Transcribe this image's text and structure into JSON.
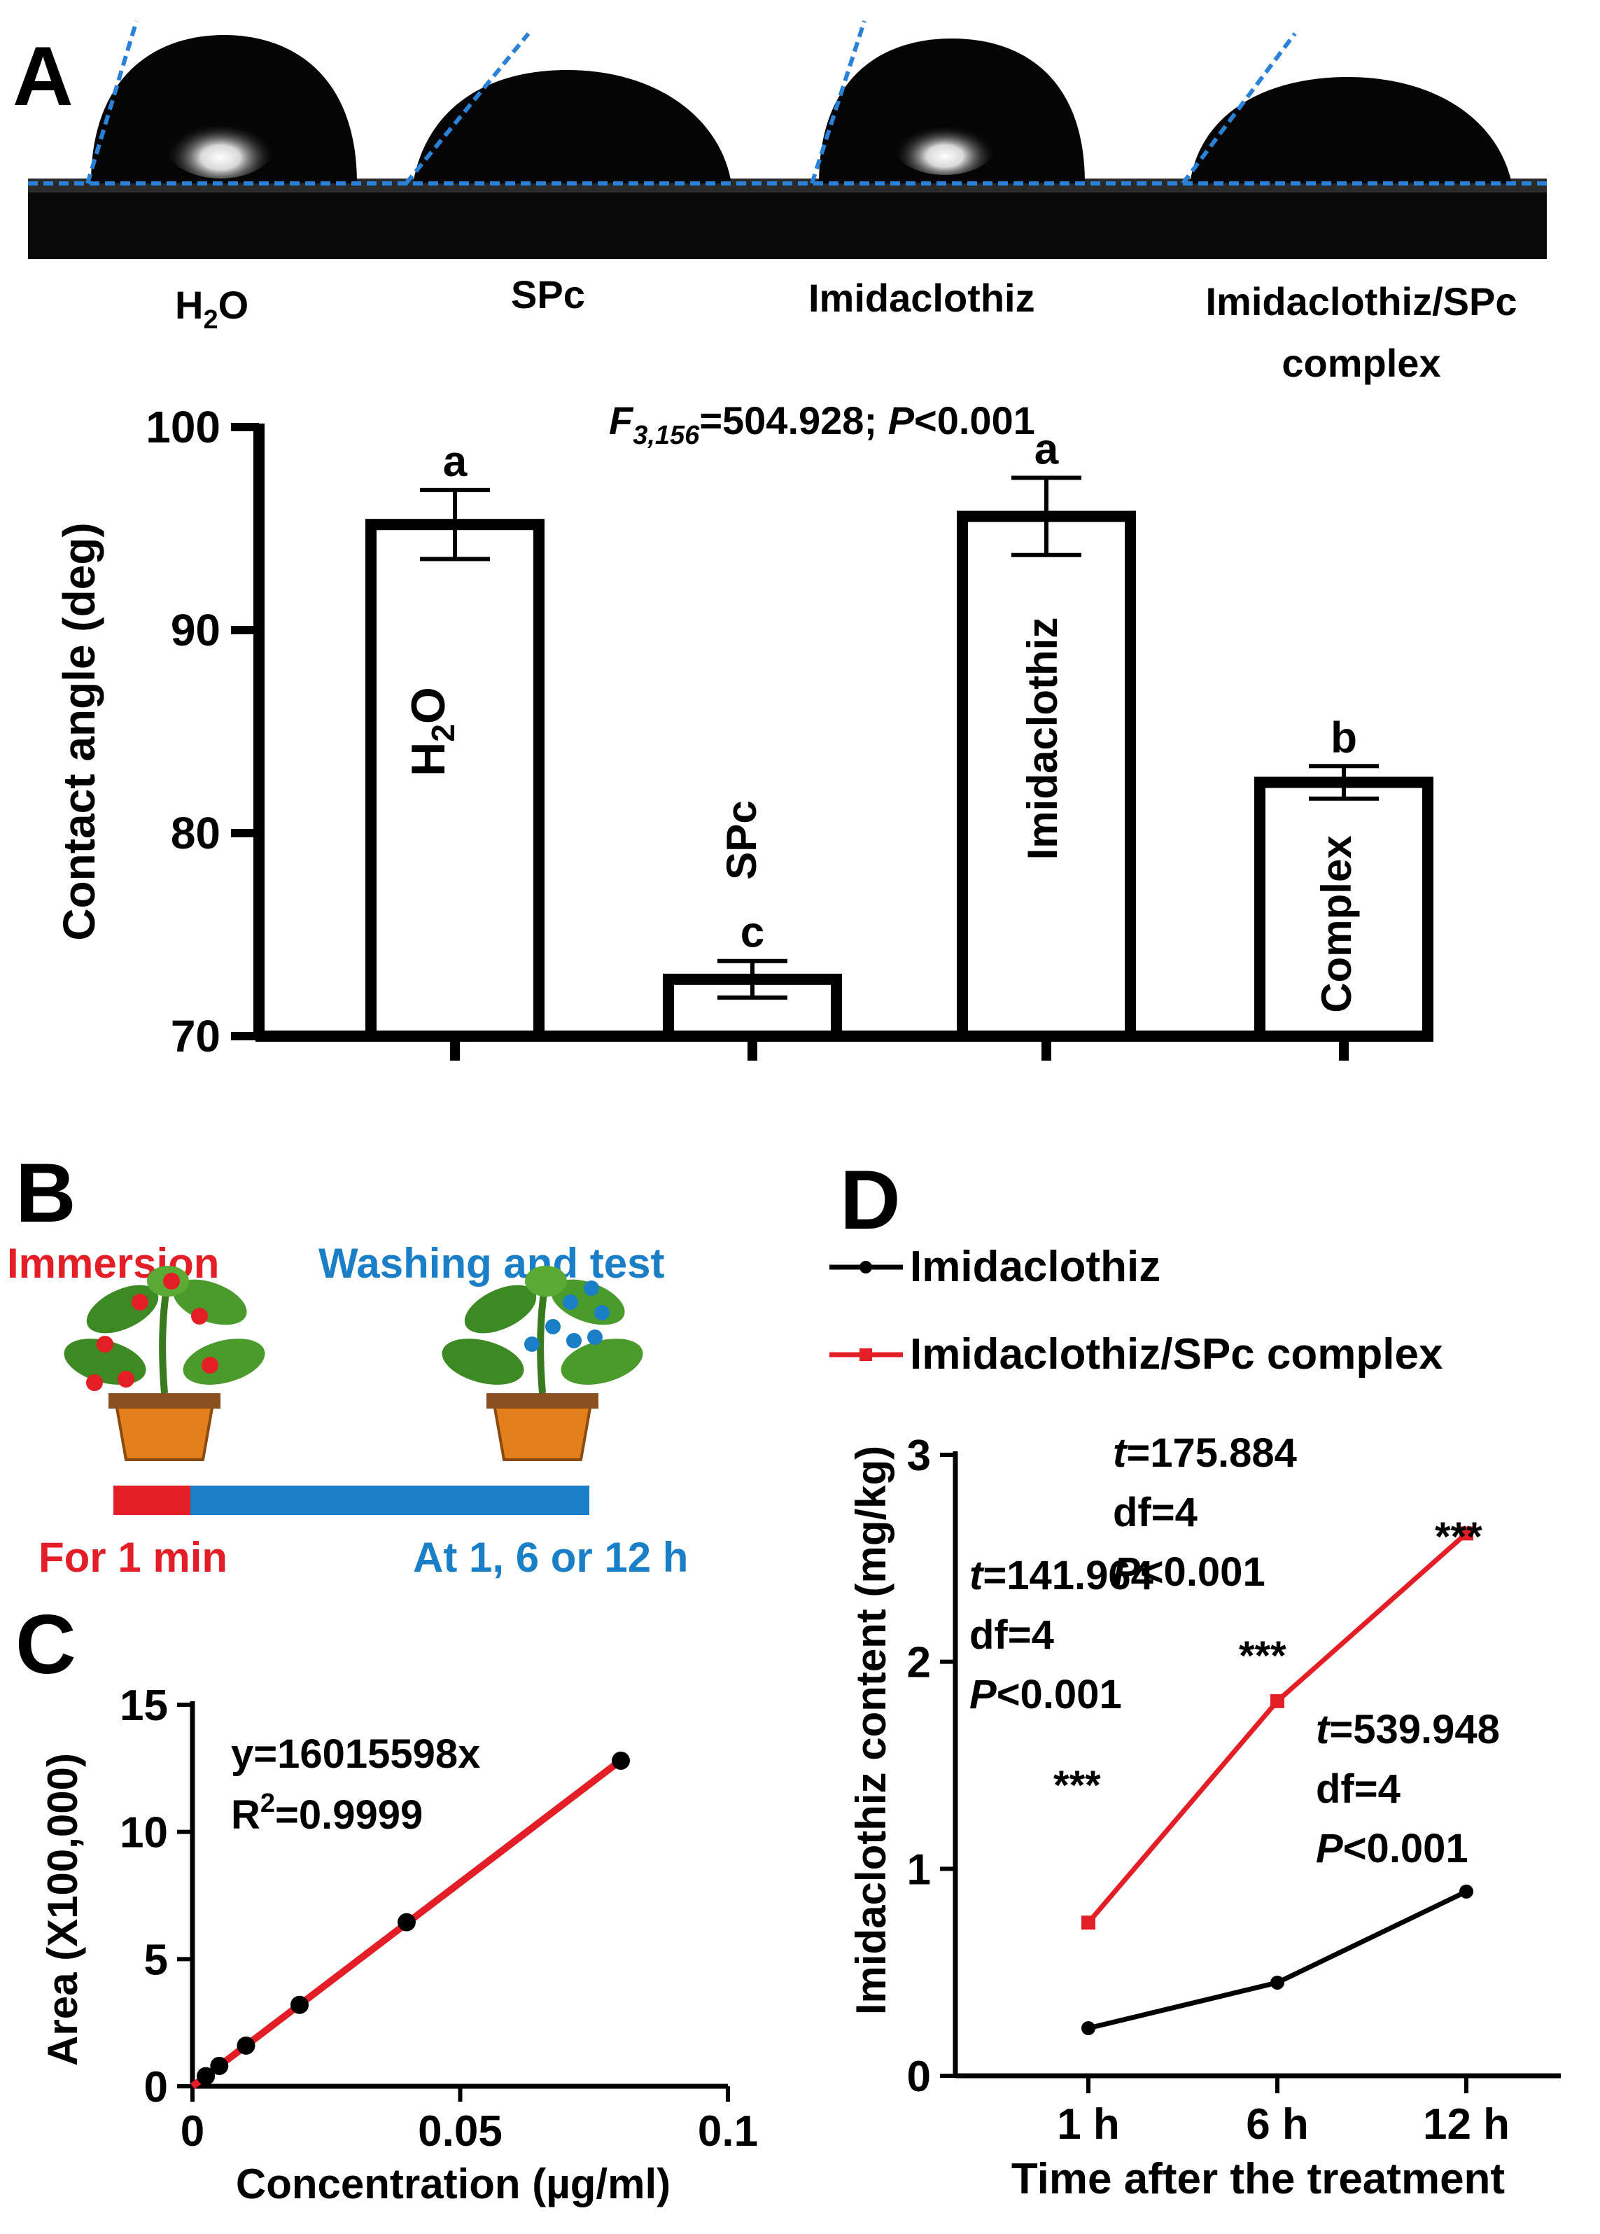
{
  "panels": {
    "A": {
      "letter": "A",
      "droplet_labels": {
        "h2o_base": "H",
        "h2o_sub": "2",
        "h2o_tail": "O",
        "spc": "SPc",
        "imidaclothiz": "Imidaclothiz",
        "complex_line1": "Imidaclothiz/SPc",
        "complex_line2": "complex"
      },
      "stat": {
        "f": "F",
        "f_sub": "3,156",
        "f_val": "=504.928; ",
        "p": "P",
        "p_val": "<0.001"
      },
      "bar_labels": {
        "h2o_base": "H",
        "h2o_sub": "2",
        "h2o_tail": "O",
        "spc": "SPc",
        "imidaclothiz": "Imidaclothiz",
        "complex": "Complex"
      }
    },
    "B": {
      "letter": "B",
      "immersion": "Immersion",
      "washing": "Washing and test",
      "duration": "For 1 min",
      "timepoints": "At 1, 6 or 12 h"
    },
    "C": {
      "letter": "C",
      "equation": "y=16015598x",
      "r2_base": "R",
      "r2_sup": "2",
      "r2_val": "=0.9999"
    },
    "D": {
      "letter": "D",
      "annotations": [
        {
          "t": "t",
          "t_val": "=141.964",
          "df": "df=4",
          "p": "P",
          "p_val": "<0.001",
          "stars": "***"
        },
        {
          "t": "t",
          "t_val": "=175.884",
          "df": "df=4",
          "p": "P",
          "p_val": "<0.001",
          "stars": "***"
        },
        {
          "t": "t",
          "t_val": "=539.948",
          "df": "df=4",
          "p": "P",
          "p_val": "<0.001",
          "stars": "***"
        }
      ]
    }
  },
  "colors": {
    "red": "#e41e26",
    "blue": "#1a7fc6",
    "black": "#000000",
    "dashed": "#2a82d8"
  },
  "chart_data": [
    {
      "type": "bar",
      "ylabel": "Contact angle (deg)",
      "ylim": [
        70,
        100
      ],
      "yticks": [
        "70",
        "80",
        "90",
        "100"
      ],
      "categories": [
        "H2O",
        "SPc",
        "Imidaclothiz",
        "Complex"
      ],
      "values": [
        95.2,
        72.8,
        95.6,
        82.5
      ],
      "errors": [
        1.7,
        0.9,
        1.9,
        0.8
      ],
      "letters": [
        "a",
        "c",
        "a",
        "b"
      ]
    },
    {
      "type": "scatter",
      "xlabel": "Concentration (µg/ml)",
      "ylabel": "Area (X100,000)",
      "xlim": [
        0,
        0.1
      ],
      "ylim": [
        0,
        15
      ],
      "xticks": [
        "0",
        "0.05",
        "0.1"
      ],
      "yticks": [
        "0",
        "5",
        "10",
        "15"
      ],
      "x": [
        0.0025,
        0.005,
        0.01,
        0.02,
        0.04,
        0.08
      ],
      "y": [
        0.4,
        0.8,
        1.6,
        3.2,
        6.45,
        12.8
      ],
      "fit": {
        "slope_per_unit": 160.15598,
        "intercept": 0
      }
    },
    {
      "type": "line",
      "xlabel": "Time after the treatment",
      "ylabel": "Imidaclothiz content (mg/kg)",
      "categories": [
        "1 h",
        "6 h",
        "12 h"
      ],
      "ylim": [
        0,
        3
      ],
      "yticks": [
        "0",
        "1",
        "2",
        "3"
      ],
      "series": [
        {
          "name": "Imidaclothiz",
          "values": [
            0.23,
            0.45,
            0.89
          ],
          "color": "#000000"
        },
        {
          "name": "Imidaclothiz/SPc complex",
          "values": [
            0.74,
            1.81,
            2.62
          ],
          "color": "#e41e26"
        }
      ]
    }
  ]
}
